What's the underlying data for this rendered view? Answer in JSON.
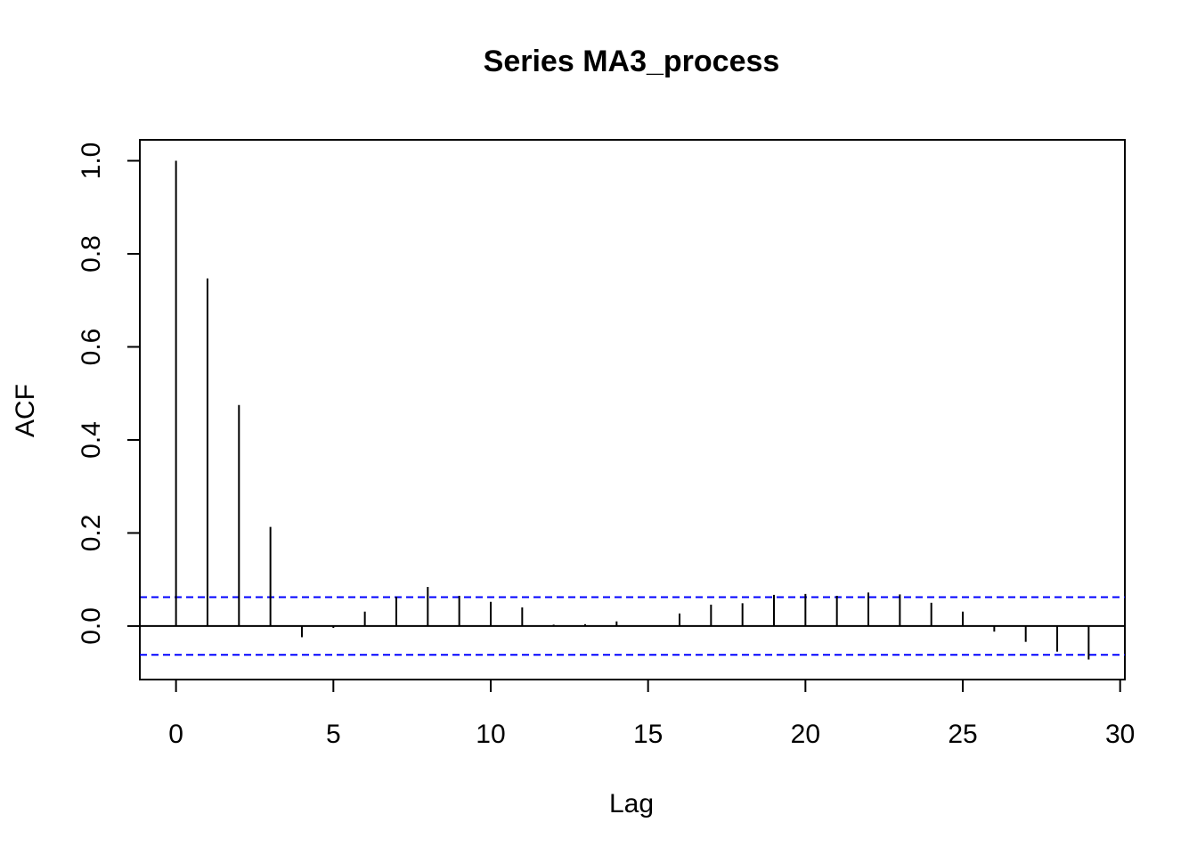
{
  "chart_data": {
    "type": "bar",
    "title": "Series  MA3_process",
    "xlabel": "Lag",
    "ylabel": "ACF",
    "xlim": [
      -1.15,
      30.15
    ],
    "ylim": [
      -0.115,
      1.045
    ],
    "xticks": [
      0,
      5,
      10,
      15,
      20,
      25,
      30
    ],
    "xtick_labels": [
      "0",
      "5",
      "10",
      "15",
      "20",
      "25",
      "30"
    ],
    "yticks": [
      0.0,
      0.2,
      0.4,
      0.6,
      0.8,
      1.0
    ],
    "ytick_labels": [
      "0.0",
      "0.2",
      "0.4",
      "0.6",
      "0.8",
      "1.0"
    ],
    "lags": [
      0,
      1,
      2,
      3,
      4,
      5,
      6,
      7,
      8,
      9,
      10,
      11,
      12,
      13,
      14,
      15,
      16,
      17,
      18,
      19,
      20,
      21,
      22,
      23,
      24,
      25,
      26,
      27,
      28,
      29
    ],
    "acf": [
      1.0,
      0.747,
      0.475,
      0.213,
      -0.024,
      -0.004,
      0.031,
      0.063,
      0.084,
      0.065,
      0.052,
      0.04,
      0.003,
      0.004,
      0.01,
      0.0,
      0.027,
      0.046,
      0.049,
      0.067,
      0.069,
      0.065,
      0.072,
      0.068,
      0.05,
      0.031,
      -0.012,
      -0.034,
      -0.055,
      -0.072
    ],
    "confidence_bound": 0.062,
    "colors": {
      "bars": "#000000",
      "ci_lines": "#0000ff",
      "zero_line": "#000000"
    },
    "grid": false,
    "legend": "none"
  }
}
